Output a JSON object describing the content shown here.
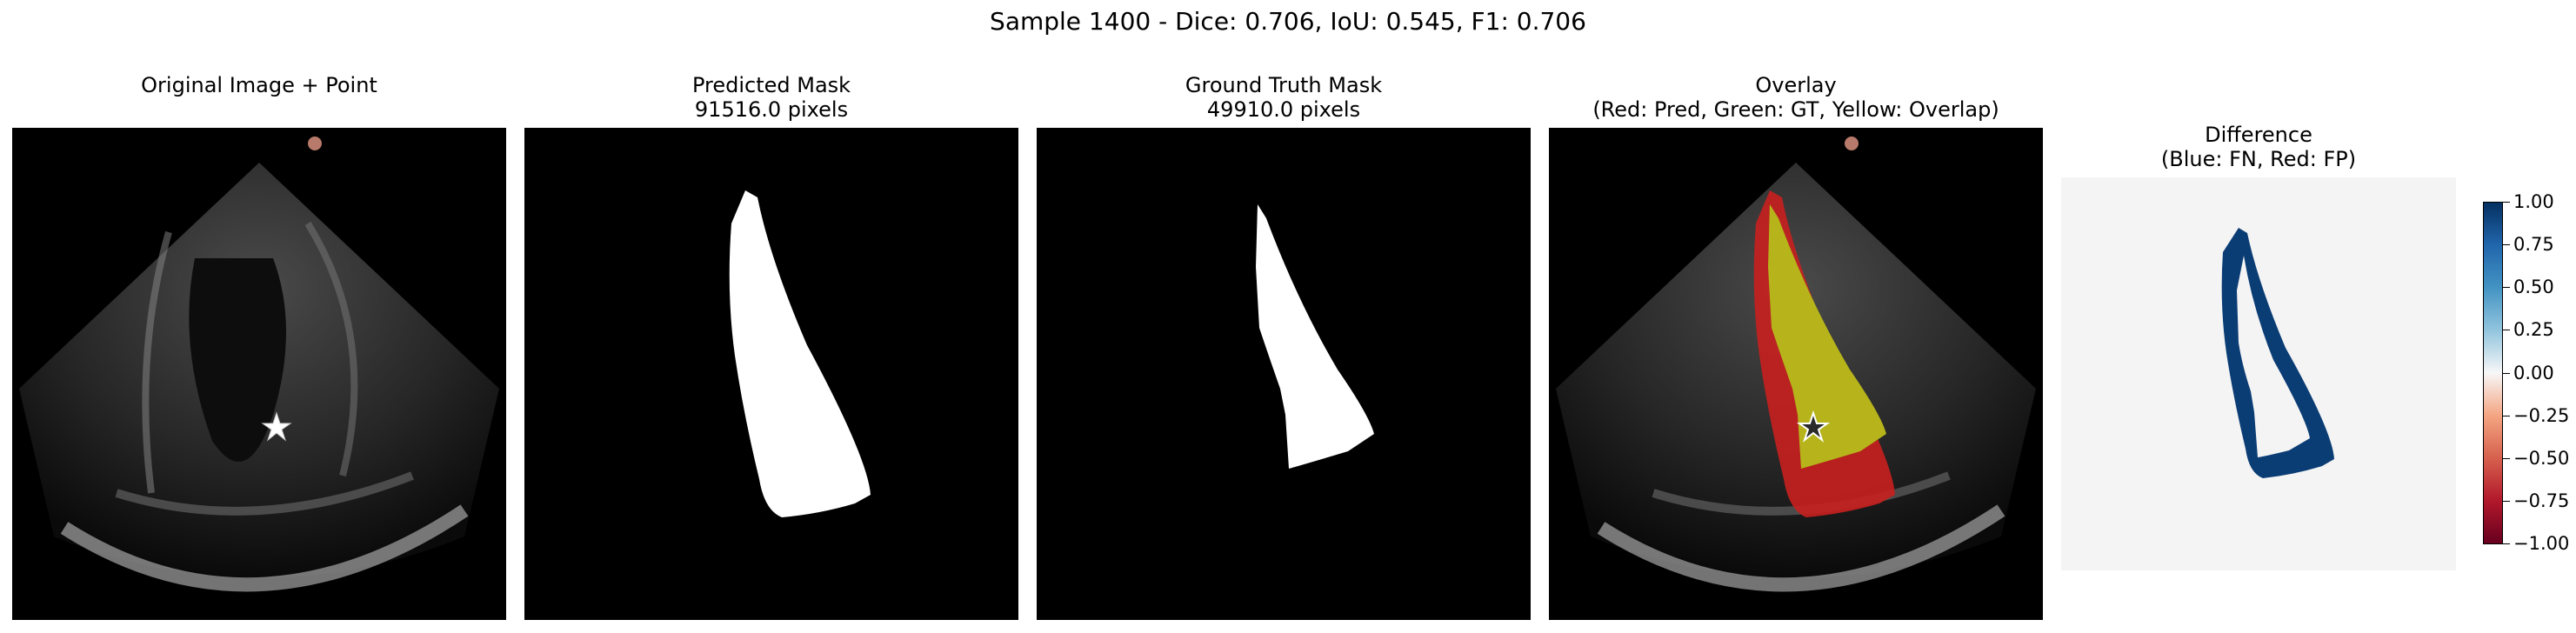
{
  "figure": {
    "suptitle": "Sample 1400 - Dice: 0.706, IoU: 0.545, F1: 0.706",
    "metrics": {
      "sample": 1400,
      "dice": 0.706,
      "iou": 0.545,
      "f1": 0.706
    }
  },
  "panels": [
    {
      "id": "original",
      "title": [
        "",
        "Original Image + Point"
      ],
      "marker": "star-icon"
    },
    {
      "id": "predicted",
      "title": [
        "Predicted Mask",
        "91516.0 pixels"
      ],
      "pixel_count": 91516.0
    },
    {
      "id": "ground_truth",
      "title": [
        "Ground Truth Mask",
        "49910.0 pixels"
      ],
      "pixel_count": 49910.0
    },
    {
      "id": "overlay",
      "title": [
        "Overlay",
        "(Red: Pred, Green: GT, Yellow: Overlap)"
      ]
    },
    {
      "id": "difference",
      "title": [
        "Difference",
        "(Blue: FN, Red: FP)"
      ]
    }
  ],
  "colorbar": {
    "ticks": [
      "1.00",
      "0.75",
      "0.50",
      "0.25",
      "0.00",
      "−0.25",
      "−0.50",
      "−0.75",
      "−1.00"
    ],
    "range": [
      -1.0,
      1.0
    ],
    "colormap": "RdBu"
  },
  "colors": {
    "pred_red": "#c8201e",
    "gt_green": "#2a8a1f",
    "overlap_yellow": "#b6b41a",
    "fn_blue": "#0b3d75",
    "diff_background": "#f4f4f4"
  }
}
